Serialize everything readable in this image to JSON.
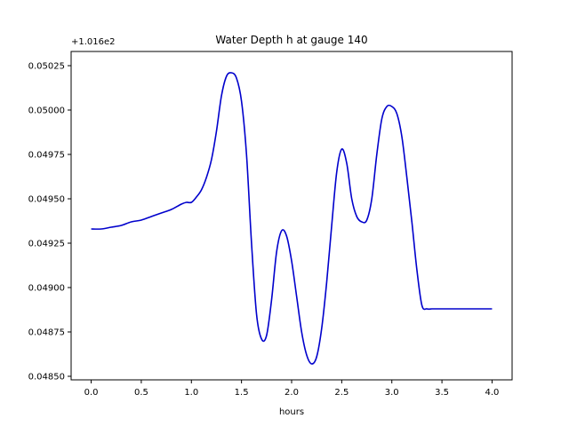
{
  "chart_data": {
    "type": "line",
    "title": "Water Depth h at gauge 140",
    "xlabel": "hours",
    "ylabel": "",
    "y_offset_label": "+1.016e2",
    "xlim": [
      -0.2,
      4.2
    ],
    "ylim": [
      0.04848,
      0.05033
    ],
    "x_ticks": [
      0.0,
      0.5,
      1.0,
      1.5,
      2.0,
      2.5,
      3.0,
      3.5,
      4.0
    ],
    "x_tick_labels": [
      "0.0",
      "0.5",
      "1.0",
      "1.5",
      "2.0",
      "2.5",
      "3.0",
      "3.5",
      "4.0"
    ],
    "y_ticks": [
      0.0485,
      0.04875,
      0.049,
      0.04925,
      0.0495,
      0.04975,
      0.05,
      0.05025
    ],
    "y_tick_labels": [
      "0.04850",
      "0.04875",
      "0.04900",
      "0.04925",
      "0.04950",
      "0.04975",
      "0.05000",
      "0.05025"
    ],
    "grid": false,
    "series": [
      {
        "color": "#0000cc",
        "x": [
          0.0,
          0.1,
          0.2,
          0.3,
          0.4,
          0.5,
          0.6,
          0.7,
          0.8,
          0.9,
          0.95,
          1.0,
          1.05,
          1.1,
          1.15,
          1.2,
          1.25,
          1.3,
          1.35,
          1.4,
          1.45,
          1.5,
          1.55,
          1.6,
          1.65,
          1.7,
          1.75,
          1.8,
          1.85,
          1.9,
          1.95,
          2.0,
          2.05,
          2.1,
          2.15,
          2.2,
          2.25,
          2.3,
          2.35,
          2.4,
          2.45,
          2.5,
          2.55,
          2.6,
          2.65,
          2.7,
          2.75,
          2.8,
          2.85,
          2.9,
          2.95,
          3.0,
          3.05,
          3.1,
          3.15,
          3.2,
          3.25,
          3.3,
          3.35,
          3.4,
          3.45,
          3.5,
          3.55,
          3.6,
          3.65,
          3.7,
          3.75,
          3.8,
          3.85,
          3.9,
          3.95,
          4.0
        ],
        "y": [
          0.04933,
          0.04933,
          0.04934,
          0.04935,
          0.04937,
          0.04938,
          0.0494,
          0.04942,
          0.04944,
          0.04947,
          0.04948,
          0.04948,
          0.04951,
          0.04955,
          0.04962,
          0.04972,
          0.04988,
          0.05008,
          0.05019,
          0.05021,
          0.05018,
          0.05005,
          0.04975,
          0.04925,
          0.04885,
          0.04871,
          0.04873,
          0.04893,
          0.0492,
          0.04932,
          0.04929,
          0.04915,
          0.04895,
          0.04875,
          0.04862,
          0.04857,
          0.04861,
          0.04877,
          0.04903,
          0.04935,
          0.04965,
          0.04978,
          0.0497,
          0.0495,
          0.0494,
          0.04937,
          0.04938,
          0.0495,
          0.04975,
          0.04995,
          0.05002,
          0.05002,
          0.04998,
          0.04985,
          0.04962,
          0.04937,
          0.0491,
          0.0489,
          0.04888,
          0.04888,
          0.04888,
          0.04888,
          0.04888,
          0.04888,
          0.04888,
          0.04888,
          0.04888,
          0.04888,
          0.04888,
          0.04888,
          0.04888,
          0.04888
        ]
      }
    ]
  }
}
